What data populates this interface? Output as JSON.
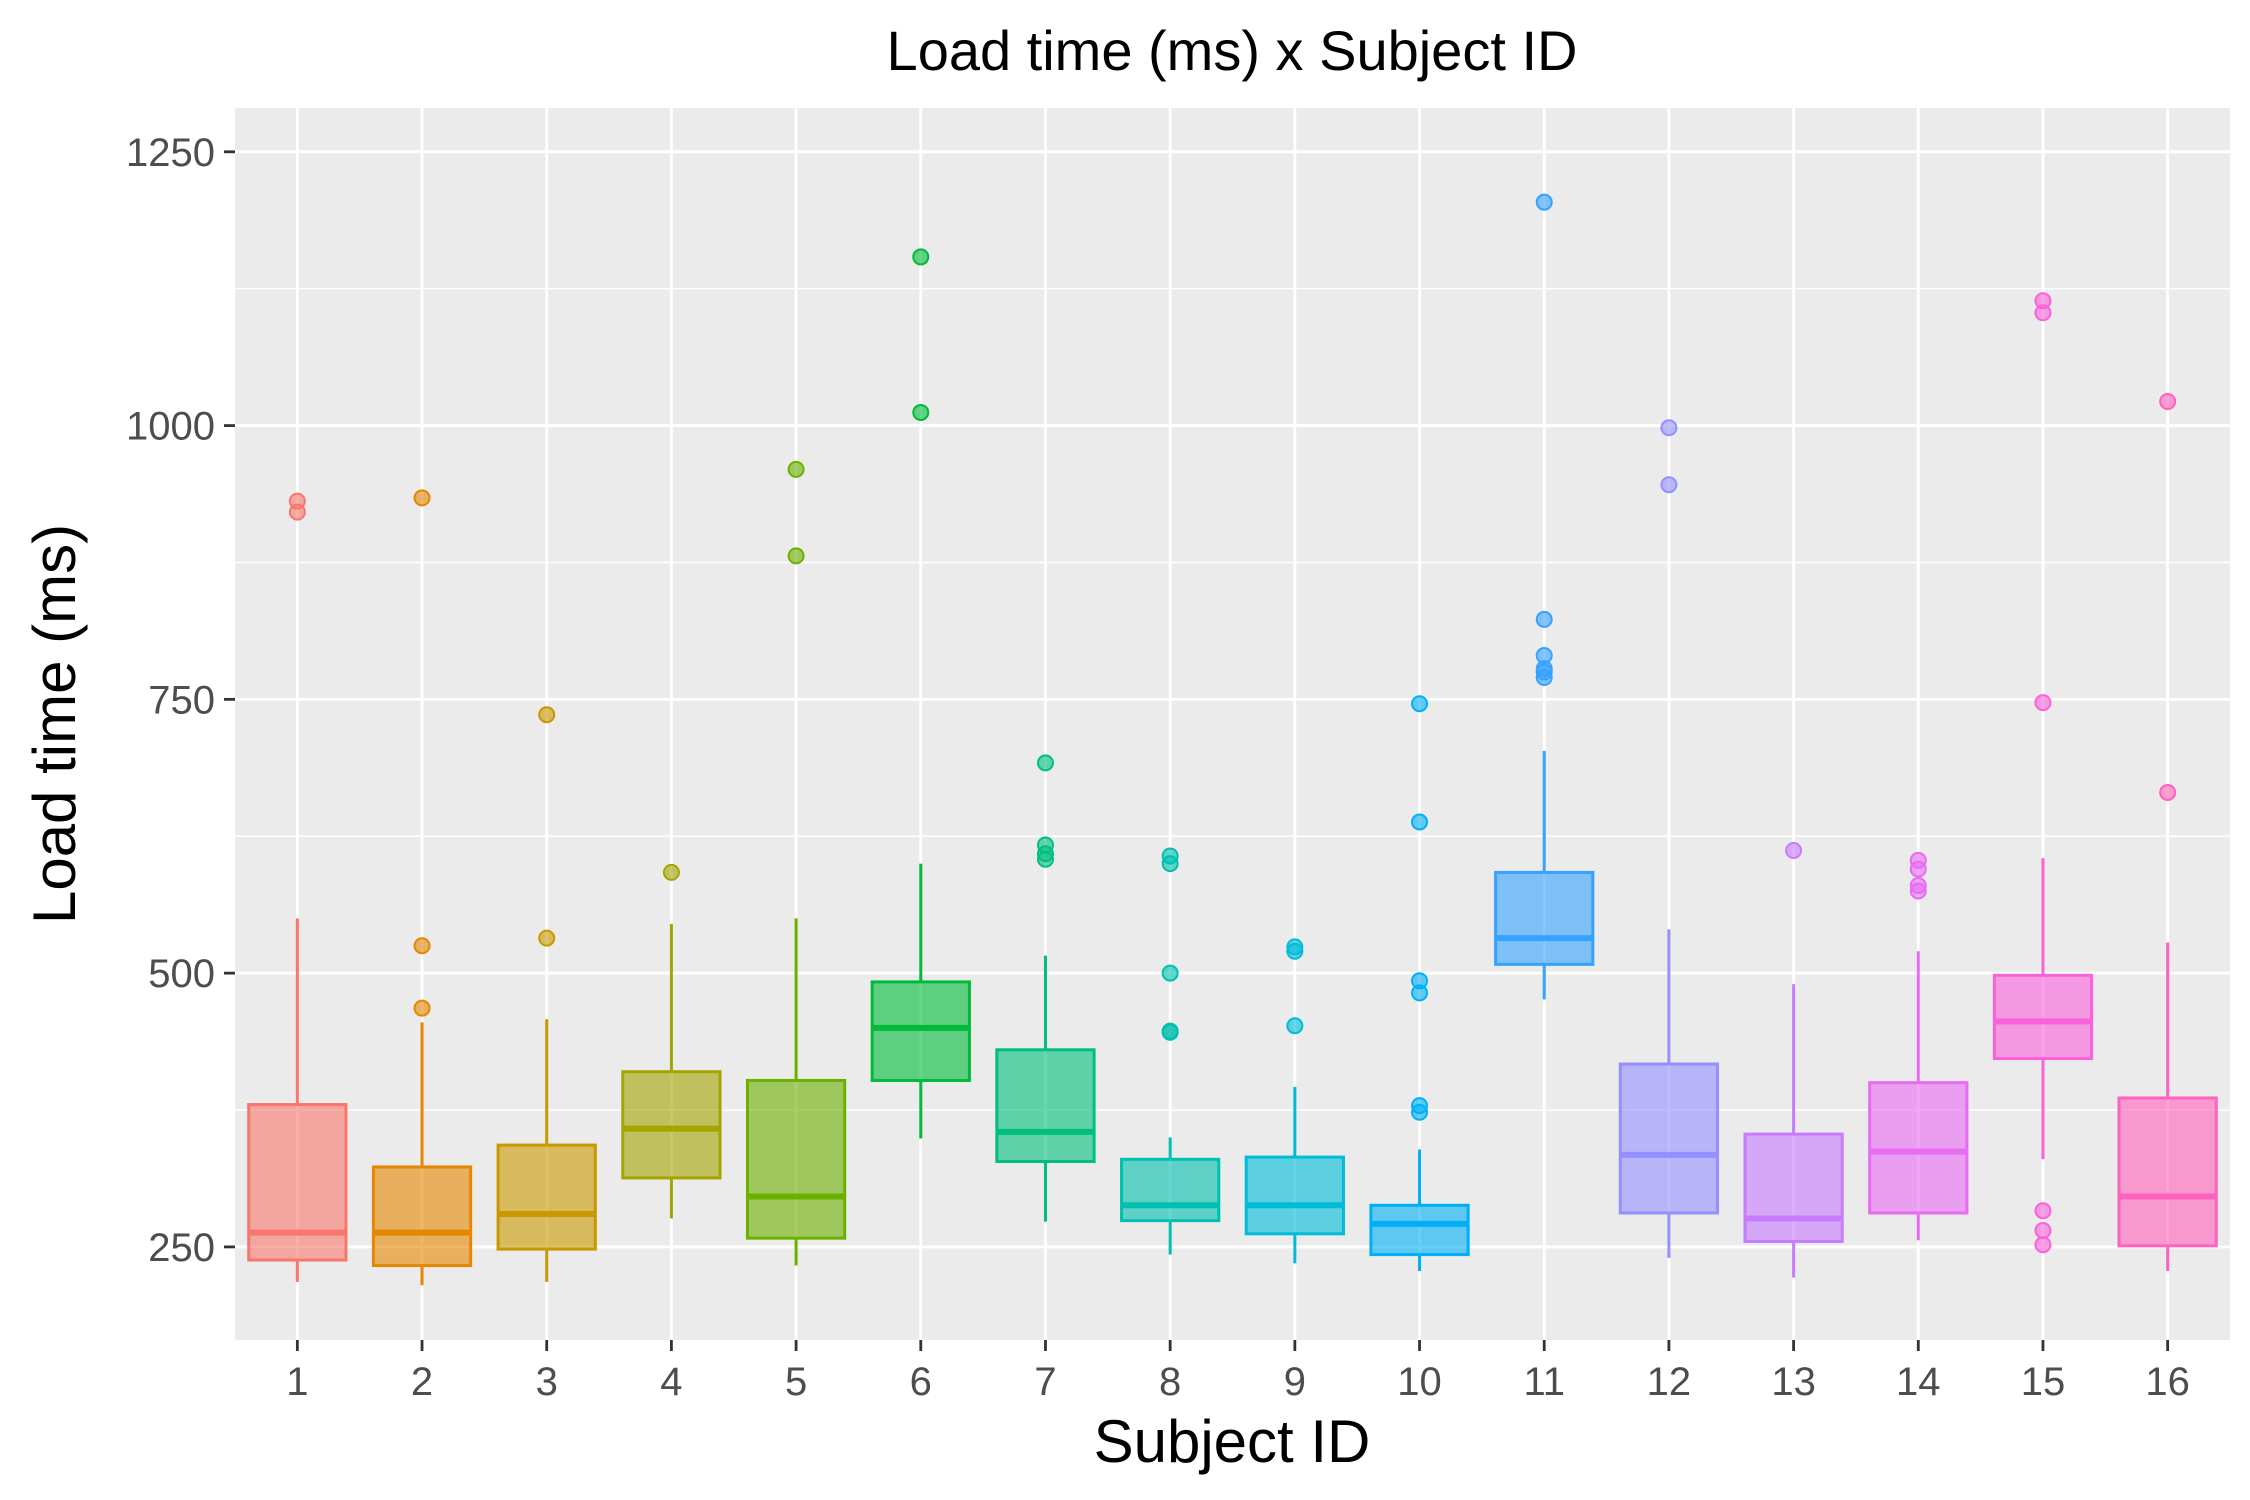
{
  "chart_data": {
    "type": "boxplot",
    "title": "Load time (ms) x Subject ID",
    "xlabel": "Subject ID",
    "ylabel": "Load time (ms)",
    "ylim": [
      165,
      1290
    ],
    "yticks": [
      250,
      500,
      750,
      1000,
      1250
    ],
    "grid": true,
    "legend": "none",
    "categories": [
      "1",
      "2",
      "3",
      "4",
      "5",
      "6",
      "7",
      "8",
      "9",
      "10",
      "11",
      "12",
      "13",
      "14",
      "15",
      "16"
    ],
    "series": [
      {
        "category": "1",
        "color": "#F8766D",
        "whisker_low": 218,
        "q1": 238,
        "median": 263,
        "q3": 380,
        "whisker_high": 550,
        "outliers": [
          921,
          931
        ]
      },
      {
        "category": "2",
        "color": "#E58700",
        "whisker_low": 215,
        "q1": 233,
        "median": 263,
        "q3": 323,
        "whisker_high": 455,
        "outliers": [
          468,
          525,
          934
        ]
      },
      {
        "category": "3",
        "color": "#C99800",
        "whisker_low": 218,
        "q1": 248,
        "median": 280,
        "q3": 343,
        "whisker_high": 458,
        "outliers": [
          532,
          736
        ]
      },
      {
        "category": "4",
        "color": "#A3A500",
        "whisker_low": 276,
        "q1": 313,
        "median": 358,
        "q3": 410,
        "whisker_high": 545,
        "outliers": [
          592
        ]
      },
      {
        "category": "5",
        "color": "#6BB100",
        "whisker_low": 233,
        "q1": 258,
        "median": 296,
        "q3": 402,
        "whisker_high": 550,
        "outliers": [
          881,
          960
        ]
      },
      {
        "category": "6",
        "color": "#00BA38",
        "whisker_low": 349,
        "q1": 402,
        "median": 450,
        "q3": 492,
        "whisker_high": 600,
        "outliers": [
          1012,
          1154
        ]
      },
      {
        "category": "7",
        "color": "#00BF7D",
        "whisker_low": 273,
        "q1": 328,
        "median": 355,
        "q3": 430,
        "whisker_high": 516,
        "outliers": [
          604,
          609,
          617,
          692
        ]
      },
      {
        "category": "8",
        "color": "#00C0AF",
        "whisker_low": 243,
        "q1": 274,
        "median": 288,
        "q3": 330,
        "whisker_high": 350,
        "outliers": [
          446,
          447,
          500,
          600,
          607
        ]
      },
      {
        "category": "9",
        "color": "#00BCD8",
        "whisker_low": 235,
        "q1": 262,
        "median": 288,
        "q3": 332,
        "whisker_high": 396,
        "outliers": [
          452,
          520,
          524
        ]
      },
      {
        "category": "10",
        "color": "#00B0F6",
        "whisker_low": 228,
        "q1": 243,
        "median": 271,
        "q3": 288,
        "whisker_high": 339,
        "outliers": [
          373,
          379,
          482,
          493,
          638,
          746
        ]
      },
      {
        "category": "11",
        "color": "#35A2FF",
        "whisker_low": 476,
        "q1": 508,
        "median": 532,
        "q3": 592,
        "whisker_high": 703,
        "outliers": [
          770,
          775,
          778,
          790,
          823,
          1204
        ]
      },
      {
        "category": "12",
        "color": "#9590FF",
        "whisker_low": 240,
        "q1": 281,
        "median": 334,
        "q3": 417,
        "whisker_high": 540,
        "outliers": [
          946,
          998
        ]
      },
      {
        "category": "13",
        "color": "#C77CFF",
        "whisker_low": 222,
        "q1": 255,
        "median": 276,
        "q3": 353,
        "whisker_high": 490,
        "outliers": [
          612
        ]
      },
      {
        "category": "14",
        "color": "#E76BF3",
        "whisker_low": 256,
        "q1": 281,
        "median": 337,
        "q3": 400,
        "whisker_high": 520,
        "outliers": [
          575,
          580,
          595,
          603
        ]
      },
      {
        "category": "15",
        "color": "#FA62DB",
        "whisker_low": 330,
        "q1": 422,
        "median": 456,
        "q3": 498,
        "whisker_high": 605,
        "outliers": [
          252,
          265,
          283,
          747,
          1103,
          1114
        ]
      },
      {
        "category": "16",
        "color": "#FF62BC",
        "whisker_low": 228,
        "q1": 251,
        "median": 296,
        "q3": 386,
        "whisker_high": 528,
        "outliers": [
          665,
          1022
        ]
      }
    ]
  }
}
